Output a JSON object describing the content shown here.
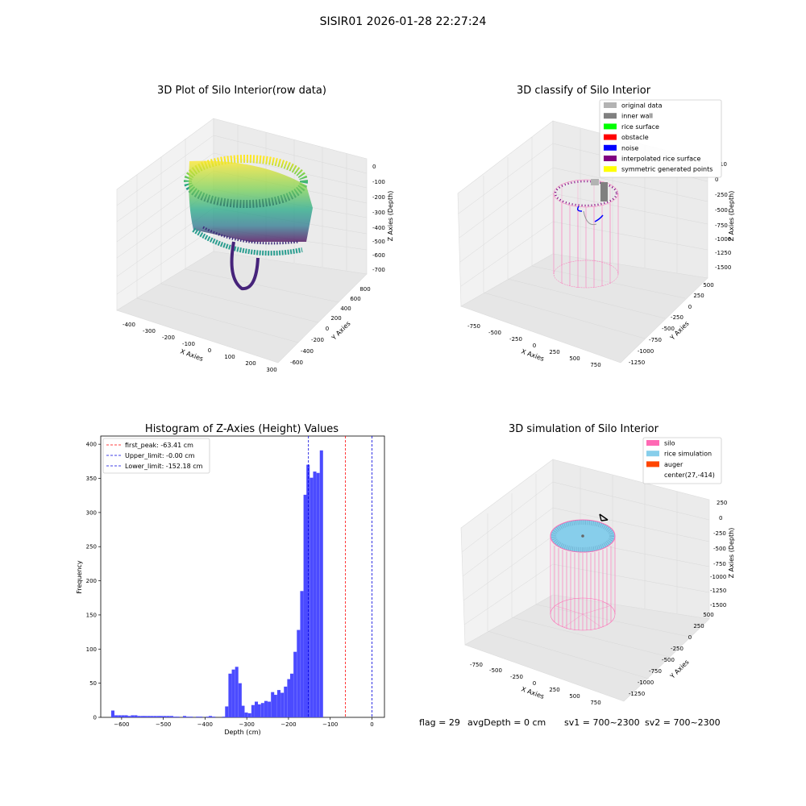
{
  "suptitle": "SISIR01 2026-01-28 22:27:24",
  "colors": {
    "hist_bar": "#4b4bff",
    "peak_line": "#ff0000",
    "limit_line": "#0000dd",
    "silo": "#ff69b4",
    "rice": "#87ceeb",
    "auger": "#ff4500",
    "original": "#b3b3b3",
    "inner_wall": "#808080",
    "rice_surface": "#00ff00",
    "obstacle": "#ff0000",
    "noise": "#0000ff",
    "interpolated": "#800080",
    "symmetric": "#ffff00"
  },
  "raw_plot": {
    "title": "3D Plot of Silo Interior(row data)",
    "xlabel": "X Axies",
    "ylabel": "Y Axies",
    "zlabel": "Z Axies (Depth)",
    "x_ticks": [
      "-400",
      "-300",
      "-200",
      "-100",
      "0",
      "100",
      "200",
      "300"
    ],
    "y_ticks": [
      "-600",
      "-400",
      "-200",
      "0",
      "200",
      "400",
      "600",
      "800"
    ],
    "z_ticks": [
      "0",
      "-100",
      "-200",
      "-300",
      "-400",
      "-500",
      "-600",
      "-700"
    ]
  },
  "classify_plot": {
    "title": "3D classify of Silo Interior",
    "xlabel": "X Axies",
    "ylabel": "Y Axies",
    "zlabel": "Z Axies (Depth)",
    "x_ticks": [
      "-750",
      "-500",
      "-250",
      "0",
      "250",
      "500",
      "750"
    ],
    "y_ticks": [
      "-1250",
      "-1000",
      "-750",
      "-500",
      "-250",
      "0",
      "250",
      "500"
    ],
    "z_ticks": [
      "0",
      "-250",
      "-500",
      "-750",
      "-1000",
      "-1250",
      "-1500"
    ],
    "z_extra_tick": "10",
    "legend": [
      {
        "label": "original data",
        "color": "#b3b3b3"
      },
      {
        "label": "inner wall",
        "color": "#808080"
      },
      {
        "label": "rice surface",
        "color": "#00ff00"
      },
      {
        "label": "obstacle",
        "color": "#ff0000"
      },
      {
        "label": "noise",
        "color": "#0000ff"
      },
      {
        "label": "interpolated rice surface",
        "color": "#800080"
      },
      {
        "label": "symmetric generated points",
        "color": "#ffff00"
      }
    ]
  },
  "sim_plot": {
    "title": "3D simulation of Silo Interior",
    "xlabel": "X Axies",
    "ylabel": "Y Axies",
    "zlabel": "Z Axies (Depth)",
    "x_ticks": [
      "-750",
      "-500",
      "-250",
      "0",
      "250",
      "500",
      "750"
    ],
    "y_ticks": [
      "-1250",
      "-1000",
      "-750",
      "-500",
      "-250",
      "0",
      "250",
      "500"
    ],
    "z_ticks": [
      "250",
      "0",
      "-250",
      "-500",
      "-750",
      "-1000",
      "-1250",
      "-1500"
    ],
    "legend": [
      {
        "label": "silo",
        "color": "#ff69b4"
      },
      {
        "label": "rice simulation",
        "color": "#87ceeb"
      },
      {
        "label": "auger",
        "color": "#ff4500"
      },
      {
        "label": "center(27,-414)",
        "color": ""
      }
    ]
  },
  "footer": {
    "flag": "flag = 29",
    "avg": "avgDepth = 0 cm",
    "sv1": "sv1 = 700~2300",
    "sv2": "sv2 = 700~2300"
  },
  "chart_data": [
    {
      "type": "bar",
      "title": "Histogram of Z-Axies (Height) Values",
      "xlabel": "Depth (cm)",
      "ylabel": "Frequency",
      "xlim": [
        -650,
        30
      ],
      "ylim": [
        0,
        412
      ],
      "bin_width": 7.8,
      "x_ticks": [
        -600,
        -500,
        -400,
        -300,
        -200,
        -100,
        0
      ],
      "y_ticks": [
        0,
        50,
        100,
        150,
        200,
        250,
        300,
        350,
        400
      ],
      "bins": [
        {
          "x": -625,
          "y": 10
        },
        {
          "x": -617,
          "y": 3
        },
        {
          "x": -609,
          "y": 3
        },
        {
          "x": -601,
          "y": 3
        },
        {
          "x": -593,
          "y": 3
        },
        {
          "x": -586,
          "y": 2
        },
        {
          "x": -578,
          "y": 3
        },
        {
          "x": -570,
          "y": 3
        },
        {
          "x": -562,
          "y": 2
        },
        {
          "x": -554,
          "y": 2
        },
        {
          "x": -547,
          "y": 2
        },
        {
          "x": -539,
          "y": 2
        },
        {
          "x": -531,
          "y": 2
        },
        {
          "x": -523,
          "y": 2
        },
        {
          "x": -515,
          "y": 2
        },
        {
          "x": -508,
          "y": 2
        },
        {
          "x": -500,
          "y": 2
        },
        {
          "x": -492,
          "y": 2
        },
        {
          "x": -484,
          "y": 2
        },
        {
          "x": -476,
          "y": 1
        },
        {
          "x": -469,
          "y": 1
        },
        {
          "x": -453,
          "y": 2
        },
        {
          "x": -445,
          "y": 1
        },
        {
          "x": -437,
          "y": 1
        },
        {
          "x": -422,
          "y": 1
        },
        {
          "x": -414,
          "y": 1
        },
        {
          "x": -398,
          "y": 1
        },
        {
          "x": -391,
          "y": 2
        },
        {
          "x": -383,
          "y": 1
        },
        {
          "x": -359,
          "y": 1
        },
        {
          "x": -352,
          "y": 16
        },
        {
          "x": -344,
          "y": 64
        },
        {
          "x": -336,
          "y": 70
        },
        {
          "x": -328,
          "y": 74
        },
        {
          "x": -320,
          "y": 50
        },
        {
          "x": -313,
          "y": 17
        },
        {
          "x": -305,
          "y": 7
        },
        {
          "x": -297,
          "y": 6
        },
        {
          "x": -289,
          "y": 18
        },
        {
          "x": -281,
          "y": 23
        },
        {
          "x": -274,
          "y": 19
        },
        {
          "x": -266,
          "y": 21
        },
        {
          "x": -258,
          "y": 24
        },
        {
          "x": -250,
          "y": 23
        },
        {
          "x": -242,
          "y": 37
        },
        {
          "x": -235,
          "y": 33
        },
        {
          "x": -227,
          "y": 40
        },
        {
          "x": -219,
          "y": 36
        },
        {
          "x": -211,
          "y": 45
        },
        {
          "x": -203,
          "y": 56
        },
        {
          "x": -196,
          "y": 64
        },
        {
          "x": -188,
          "y": 96
        },
        {
          "x": -180,
          "y": 128
        },
        {
          "x": -172,
          "y": 185
        },
        {
          "x": -164,
          "y": 326
        },
        {
          "x": -157,
          "y": 370
        },
        {
          "x": -149,
          "y": 351
        },
        {
          "x": -141,
          "y": 360
        },
        {
          "x": -133,
          "y": 358
        },
        {
          "x": -125,
          "y": 391
        }
      ],
      "lines": [
        {
          "label": "first_peak: -63.41 cm",
          "x": -63.41,
          "color": "#ff0000"
        },
        {
          "label": "Upper_limit: -0.00 cm",
          "x": 0,
          "color": "#0000dd"
        },
        {
          "label": "Lower_limit: -152.18 cm",
          "x": -152.18,
          "color": "#0000dd"
        }
      ],
      "legend_position": "upper-left"
    }
  ]
}
